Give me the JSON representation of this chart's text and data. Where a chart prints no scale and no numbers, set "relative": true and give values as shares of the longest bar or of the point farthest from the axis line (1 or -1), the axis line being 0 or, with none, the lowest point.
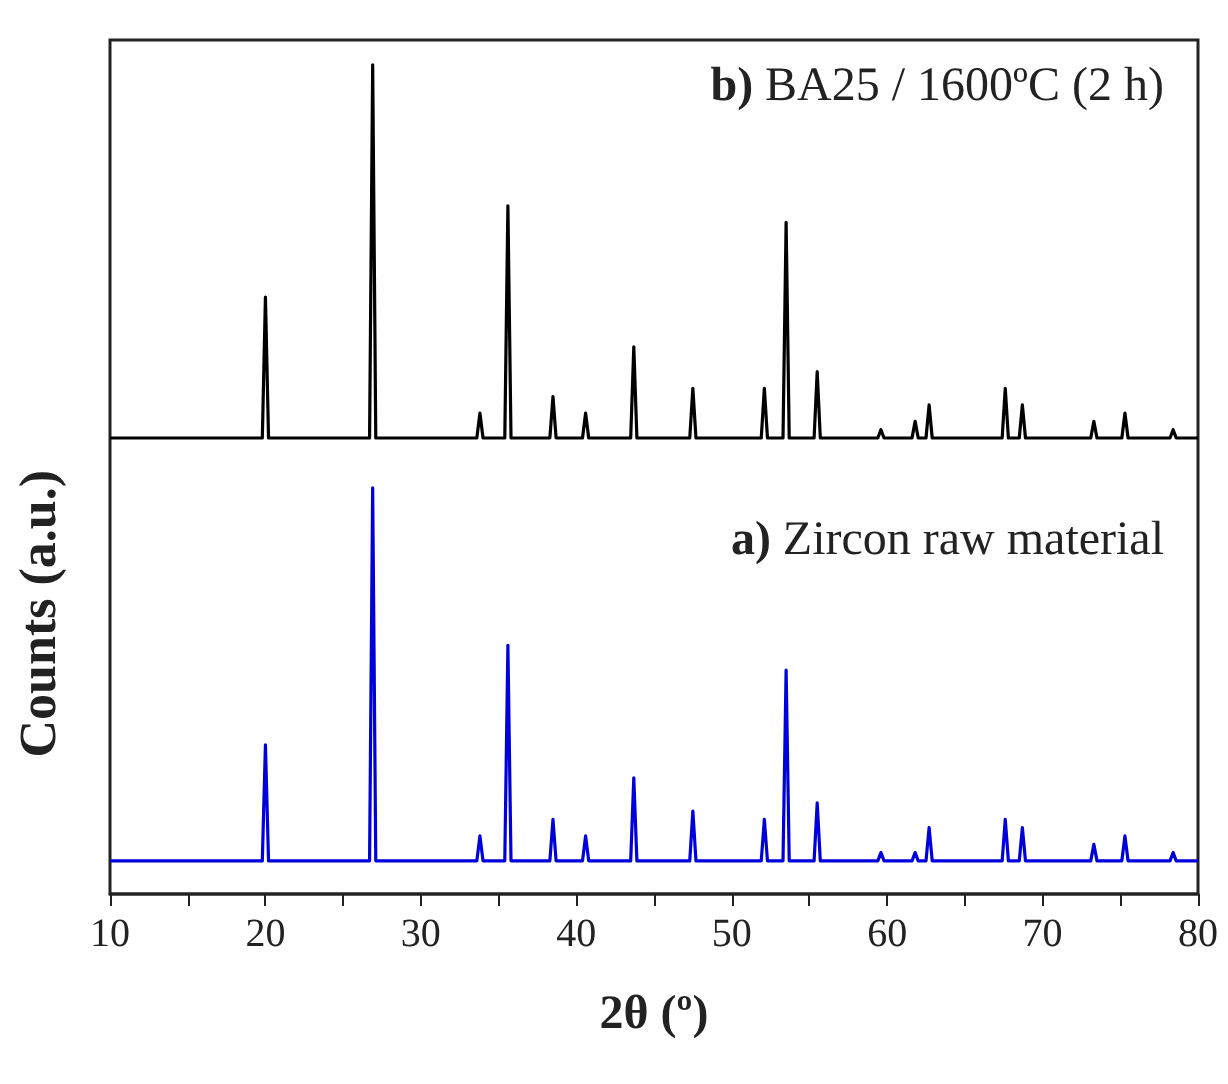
{
  "chart_data": {
    "type": "line",
    "relative": true,
    "xlabel": "2θ (º)",
    "ylabel": "Counts (a.u.)",
    "annotations": [
      "b) BA25 / 1600ºC (2 h)",
      "a) Zircon raw material"
    ],
    "xlim": [
      10,
      80
    ],
    "xticks": [
      10,
      {
        "value": 15,
        "label": null
      },
      20,
      {
        "value": 25,
        "label": null
      },
      30,
      {
        "value": 35,
        "label": null
      },
      40,
      {
        "value": 45,
        "label": null
      },
      50,
      {
        "value": 55,
        "label": null
      },
      60,
      {
        "value": 65,
        "label": null
      },
      70,
      {
        "value": 75,
        "label": null
      },
      80
    ],
    "x": [
      10,
      19.8,
      20,
      20.2,
      26.7,
      26.9,
      27.1,
      33.6,
      33.8,
      34,
      35.4,
      35.6,
      35.8,
      38.3,
      38.5,
      38.7,
      40.4,
      40.6,
      40.8,
      43.5,
      43.7,
      43.9,
      47.3,
      47.5,
      47.7,
      51.9,
      52.1,
      52.3,
      53.3,
      53.5,
      53.7,
      55.3,
      55.5,
      55.7,
      59.4,
      59.6,
      59.8,
      61.6,
      61.8,
      62,
      62.5,
      62.7,
      62.9,
      67.4,
      67.6,
      67.8,
      68.5,
      68.7,
      68.9,
      73.1,
      73.3,
      73.5,
      75.1,
      75.3,
      75.5,
      78.2,
      78.4,
      78.6,
      80
    ],
    "series": [
      {
        "color": "#000000",
        "values": [
          0.55,
          0.55,
          0.72,
          0.55,
          0.55,
          1.0,
          0.55,
          0.55,
          0.58,
          0.55,
          0.55,
          0.83,
          0.55,
          0.55,
          0.6,
          0.55,
          0.55,
          0.58,
          0.55,
          0.55,
          0.66,
          0.55,
          0.55,
          0.61,
          0.55,
          0.55,
          0.61,
          0.55,
          0.55,
          0.81,
          0.55,
          0.55,
          0.63,
          0.55,
          0.55,
          0.56,
          0.55,
          0.55,
          0.57,
          0.55,
          0.55,
          0.59,
          0.55,
          0.55,
          0.61,
          0.55,
          0.55,
          0.59,
          0.55,
          0.55,
          0.57,
          0.55,
          0.55,
          0.58,
          0.55,
          0.55,
          0.56,
          0.55,
          0.55
        ]
      },
      {
        "color": "#0000dd",
        "values": [
          0.04,
          0.04,
          0.18,
          0.04,
          0.04,
          0.49,
          0.04,
          0.04,
          0.07,
          0.04,
          0.04,
          0.3,
          0.04,
          0.04,
          0.09,
          0.04,
          0.04,
          0.07,
          0.04,
          0.04,
          0.14,
          0.04,
          0.04,
          0.1,
          0.04,
          0.04,
          0.09,
          0.04,
          0.04,
          0.27,
          0.04,
          0.04,
          0.11,
          0.04,
          0.04,
          0.05,
          0.04,
          0.04,
          0.05,
          0.04,
          0.04,
          0.08,
          0.04,
          0.04,
          0.09,
          0.04,
          0.04,
          0.08,
          0.04,
          0.04,
          0.06,
          0.04,
          0.04,
          0.07,
          0.04,
          0.04,
          0.05,
          0.04,
          0.04
        ]
      }
    ]
  }
}
